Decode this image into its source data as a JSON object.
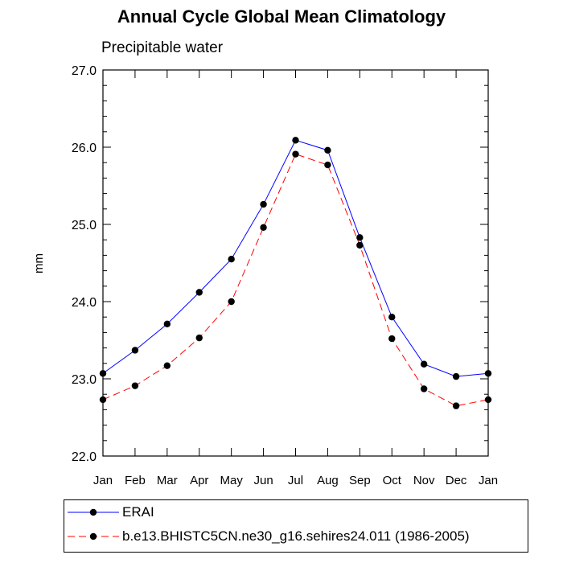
{
  "title": "Annual Cycle Global Mean Climatology",
  "subtitle": "Precipitable water",
  "chart_data": {
    "type": "line",
    "ylabel": "mm",
    "xlabel": "",
    "categories": [
      "Jan",
      "Feb",
      "Mar",
      "Apr",
      "May",
      "Jun",
      "Jul",
      "Aug",
      "Sep",
      "Oct",
      "Nov",
      "Dec",
      "Jan"
    ],
    "ylim": [
      22.0,
      27.0
    ],
    "yticks": [
      "22.0",
      "23.0",
      "24.0",
      "25.0",
      "26.0",
      "27.0"
    ],
    "series": [
      {
        "name": "ERAI",
        "color": "#0000ff",
        "style": "solid",
        "values": [
          23.07,
          23.37,
          23.71,
          24.12,
          24.55,
          25.26,
          26.09,
          25.96,
          24.83,
          23.8,
          23.19,
          23.03,
          23.07
        ]
      },
      {
        "name": "b.e13.BHISTC5CN.ne30_g16.sehires24.011 (1986-2005)",
        "color": "#ff0000",
        "style": "dashed",
        "values": [
          22.73,
          22.91,
          23.17,
          23.53,
          24.0,
          24.96,
          25.91,
          25.77,
          24.73,
          23.52,
          22.87,
          22.65,
          22.73
        ]
      }
    ],
    "marker_color": "#000000",
    "grid": false,
    "legend_position": "bottom"
  }
}
